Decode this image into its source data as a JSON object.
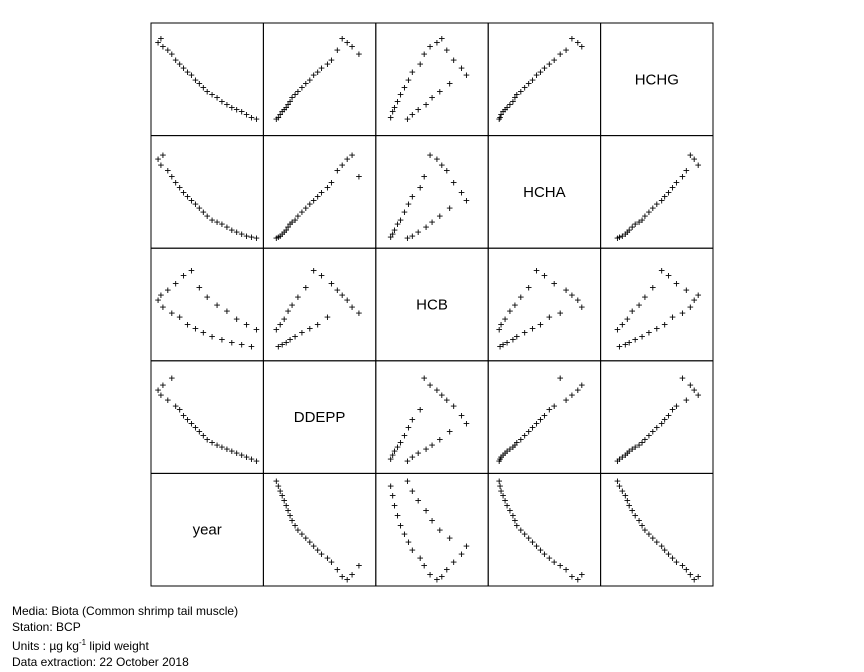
{
  "chart_data": {
    "type": "scatter",
    "subtype": "scatterplot-matrix",
    "variables": [
      "year",
      "DDEPP",
      "HCB",
      "HCHA",
      "HCHG"
    ],
    "diagonal_labels": [
      "HCHG",
      "HCHA",
      "HCB",
      "DDEPP",
      "year"
    ],
    "marker": "+",
    "censored_marker": "<",
    "ticks_shown": false,
    "grid": false,
    "legend": "none",
    "observations": [
      {
        "year": 0.0,
        "DDEPP": 0.78,
        "HCB": 0.55,
        "HCHA": 0.84,
        "HCHG": 0.88
      },
      {
        "year": 0.03,
        "DDEPP": 0.73,
        "HCB": 0.6,
        "HCHA": 0.78,
        "HCHG": 0.92
      },
      {
        "year": 0.05,
        "DDEPP": 0.83,
        "HCB": 0.48,
        "HCHA": 0.88,
        "HCHG": 0.84
      },
      {
        "year": 0.1,
        "DDEPP": 0.68,
        "HCB": 0.65,
        "HCHA": 0.72,
        "HCHG": 0.8
      },
      {
        "year": 0.14,
        "DDEPP": 0.9,
        "HCB": 0.42,
        "HCHA": 0.66,
        "HCHG": 0.76
      },
      {
        "year": 0.18,
        "DDEPP": 0.62,
        "HCB": 0.72,
        "HCHA": 0.6,
        "HCHG": 0.7
      },
      {
        "year": 0.22,
        "DDEPP": 0.58,
        "HCB": 0.38,
        "HCHA": 0.55,
        "HCHG": 0.66
      },
      {
        "year": 0.26,
        "DDEPP": 0.52,
        "HCB": 0.8,
        "HCHA": 0.5,
        "HCHG": 0.62
      },
      {
        "year": 0.3,
        "DDEPP": 0.48,
        "HCB": 0.3,
        "HCHA": 0.46,
        "HCHG": 0.58
      },
      {
        "year": 0.34,
        "DDEPP": 0.44,
        "HCB": 0.85,
        "HCHA": 0.42,
        "HCHG": 0.55
      },
      {
        "year": 0.38,
        "DDEPP": 0.4,
        "HCB": 0.26,
        "HCHA": 0.38,
        "HCHG": 0.5
      },
      {
        "year": 0.42,
        "DDEPP": 0.36,
        "HCB": 0.68,
        "HCHA": 0.34,
        "HCHG": 0.46
      },
      {
        "year": 0.46,
        "DDEPP": 0.32,
        "HCB": 0.22,
        "HCHA": 0.3,
        "HCHG": 0.42
      },
      {
        "year": 0.5,
        "DDEPP": 0.28,
        "HCB": 0.58,
        "HCHA": 0.26,
        "HCHG": 0.38
      },
      {
        "year": 0.55,
        "DDEPP": 0.25,
        "HCB": 0.18,
        "HCHA": 0.22,
        "HCHG": 0.35
      },
      {
        "year": 0.6,
        "DDEPP": 0.22,
        "HCB": 0.5,
        "HCHA": 0.2,
        "HCHG": 0.32
      },
      {
        "year": 0.65,
        "DDEPP": 0.2,
        "HCB": 0.15,
        "HCHA": 0.18,
        "HCHG": 0.28
      },
      {
        "year": 0.7,
        "DDEPP": 0.18,
        "HCB": 0.44,
        "HCHA": 0.15,
        "HCHG": 0.25
      },
      {
        "year": 0.75,
        "DDEPP": 0.16,
        "HCB": 0.12,
        "HCHA": 0.12,
        "HCHG": 0.22
      },
      {
        "year": 0.8,
        "DDEPP": 0.14,
        "HCB": 0.36,
        "HCHA": 0.1,
        "HCHG": 0.2
      },
      {
        "year": 0.85,
        "DDEPP": 0.12,
        "HCB": 0.1,
        "HCHA": 0.08,
        "HCHG": 0.18
      },
      {
        "year": 0.9,
        "DDEPP": 0.1,
        "HCB": 0.3,
        "HCHA": 0.06,
        "HCHG": 0.15
      },
      {
        "year": 0.95,
        "DDEPP": 0.08,
        "HCB": 0.08,
        "HCHA": 0.05,
        "HCHG": 0.12
      },
      {
        "year": 1.0,
        "DDEPP": 0.06,
        "HCB": 0.25,
        "HCHA": 0.04,
        "HCHG": 0.1
      }
    ]
  },
  "footer": {
    "media": "Media: Biota (Common shrimp tail muscle)",
    "station": "Station: BCP",
    "units_prefix": "Units : ",
    "units_mu": "µg kg",
    "units_exp": "-1",
    "units_suffix": " lipid weight",
    "extraction": "Data extraction: 22 October 2018"
  }
}
